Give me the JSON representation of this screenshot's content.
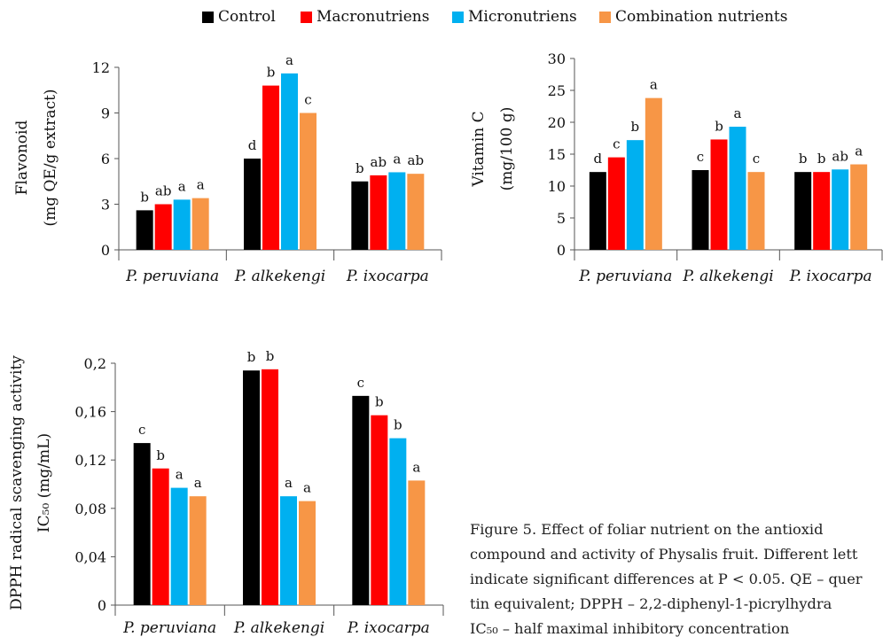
{
  "legend": {
    "items": [
      {
        "label": "Control",
        "color": "#000000"
      },
      {
        "label": "Macronutriens",
        "color": "#ff0000"
      },
      {
        "label": "Micronutriens",
        "color": "#00b0f0"
      },
      {
        "label": "Combination nutrients",
        "color": "#f79646"
      }
    ]
  },
  "chart_data": [
    {
      "type": "bar",
      "ylabel": [
        "Flavonoid",
        "(mg QE/g extract)"
      ],
      "ylim": [
        0,
        12
      ],
      "yticks": [
        0,
        3,
        6,
        9,
        12
      ],
      "yticklabels": [
        "0",
        "3",
        "6",
        "9",
        "12"
      ],
      "categories": [
        "P. peruviana",
        "P. alkekengi",
        "P. ixocarpa"
      ],
      "series": [
        {
          "name": "Control",
          "values": [
            2.6,
            6.0,
            4.5
          ],
          "labels": [
            "b",
            "d",
            "b"
          ]
        },
        {
          "name": "Macronutriens",
          "values": [
            3.0,
            10.8,
            4.9
          ],
          "labels": [
            "ab",
            "b",
            "ab"
          ]
        },
        {
          "name": "Micronutriens",
          "values": [
            3.3,
            11.6,
            5.1
          ],
          "labels": [
            "a",
            "a",
            "a"
          ]
        },
        {
          "name": "Combination nutrients",
          "values": [
            3.4,
            9.0,
            5.0
          ],
          "labels": [
            "a",
            "c",
            "ab"
          ]
        }
      ]
    },
    {
      "type": "bar",
      "ylabel": [
        "Vitamin C",
        "(mg/100 g)"
      ],
      "ylim": [
        0,
        30
      ],
      "yticks": [
        0,
        5,
        10,
        15,
        20,
        25,
        30
      ],
      "yticklabels": [
        "0",
        "5",
        "10",
        "15",
        "20",
        "25",
        "30"
      ],
      "categories": [
        "P. peruviana",
        "P. alkekengi",
        "P. ixocarpa"
      ],
      "series": [
        {
          "name": "Control",
          "values": [
            12.2,
            12.5,
            12.2
          ],
          "labels": [
            "d",
            "c",
            "b"
          ]
        },
        {
          "name": "Macronutriens",
          "values": [
            14.5,
            17.3,
            12.2
          ],
          "labels": [
            "c",
            "b",
            "b"
          ]
        },
        {
          "name": "Micronutriens",
          "values": [
            17.2,
            19.3,
            12.6
          ],
          "labels": [
            "b",
            "a",
            "ab"
          ]
        },
        {
          "name": "Combination nutrients",
          "values": [
            23.8,
            12.2,
            13.4
          ],
          "labels": [
            "a",
            "c",
            "a"
          ]
        }
      ]
    },
    {
      "type": "bar",
      "ylabel": [
        "DPPH radical scavenging activity",
        "IC₅₀ (mg/mL)"
      ],
      "ylim": [
        0,
        0.2
      ],
      "yticks": [
        0,
        0.04,
        0.08,
        0.12,
        0.16,
        0.2
      ],
      "yticklabels": [
        "0",
        "0,04",
        "0,08",
        "0,12",
        "0,16",
        "0,2"
      ],
      "categories": [
        "P. peruviana",
        "P. alkekengi",
        "P. ixocarpa"
      ],
      "series": [
        {
          "name": "Control",
          "values": [
            0.134,
            0.194,
            0.173
          ],
          "labels": [
            "c",
            "b",
            "c"
          ]
        },
        {
          "name": "Macronutriens",
          "values": [
            0.113,
            0.195,
            0.157
          ],
          "labels": [
            "b",
            "b",
            "b"
          ]
        },
        {
          "name": "Micronutriens",
          "values": [
            0.097,
            0.09,
            0.138
          ],
          "labels": [
            "a",
            "a",
            "b"
          ]
        },
        {
          "name": "Combination nutrients",
          "values": [
            0.09,
            0.086,
            0.103
          ],
          "labels": [
            "a",
            "a",
            "a"
          ]
        }
      ]
    }
  ],
  "caption": {
    "lines": [
      "Figure 5. Effect of foliar nutrient on the antioxid",
      "compound and activity of Physalis fruit. Different lett",
      "indicate significant differences at P < 0.05. QE – quer",
      "tin equivalent; DPPH – 2,2-diphenyl-1-picrylhydra",
      "IC₅₀ – half maximal inhibitory concentration"
    ]
  }
}
